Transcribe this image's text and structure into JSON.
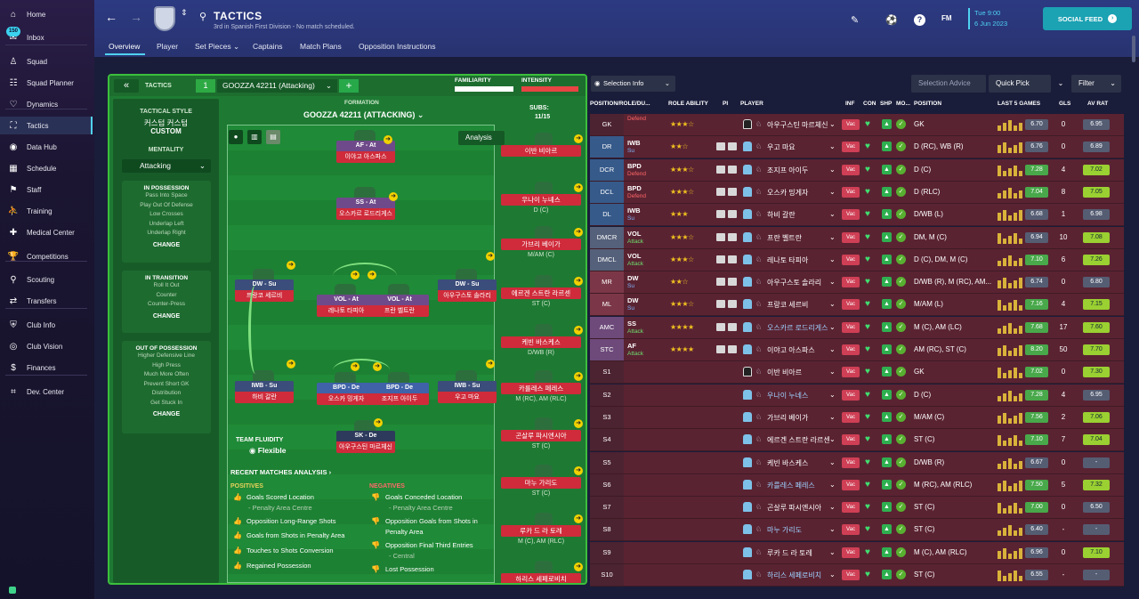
{
  "sidebar": {
    "inbox_badge": "150",
    "items": [
      {
        "label": "Home",
        "icon": "home-icon"
      },
      {
        "label": "Inbox",
        "icon": "inbox-icon"
      },
      {
        "label": "Squad",
        "icon": "squad-icon"
      },
      {
        "label": "Squad Planner",
        "icon": "squad-planner-icon"
      },
      {
        "label": "Dynamics",
        "icon": "dynamics-icon"
      },
      {
        "label": "Tactics",
        "icon": "tactics-icon"
      },
      {
        "label": "Data Hub",
        "icon": "data-hub-icon"
      },
      {
        "label": "Schedule",
        "icon": "schedule-icon"
      },
      {
        "label": "Staff",
        "icon": "staff-icon"
      },
      {
        "label": "Training",
        "icon": "training-icon"
      },
      {
        "label": "Medical Center",
        "icon": "medical-icon"
      },
      {
        "label": "Competitions",
        "icon": "trophy-icon"
      },
      {
        "label": "Scouting",
        "icon": "scouting-icon"
      },
      {
        "label": "Transfers",
        "icon": "transfers-icon"
      },
      {
        "label": "Club Info",
        "icon": "club-info-icon"
      },
      {
        "label": "Club Vision",
        "icon": "club-vision-icon"
      },
      {
        "label": "Finances",
        "icon": "finances-icon"
      },
      {
        "label": "Dev. Center",
        "icon": "dev-center-icon"
      }
    ]
  },
  "header": {
    "title": "TACTICS",
    "subtitle": "3rd in Spanish First Division - No match scheduled.",
    "tabs": [
      "Overview",
      "Player",
      "Set Pieces ⌄",
      "Captains",
      "Match Plans",
      "Opposition Instructions"
    ],
    "fm_label": "FM",
    "time": "Tue 9:00",
    "date": "6 Jun 2023",
    "social_feed": "SOCIAL FEED"
  },
  "tactics_bar": {
    "label": "TACTICS",
    "slot": "1",
    "tactic_name": "GOOZZA 42211 (Attacking)",
    "familiarity": "FAMILIARITY",
    "intensity": "INTENSITY"
  },
  "style": {
    "style_label": "TACTICAL STYLE",
    "style_name": "커스텀 커스텀",
    "style_type": "CUSTOM",
    "mentality_label": "MENTALITY",
    "mentality": "Attacking",
    "in_possession": {
      "title": "IN POSSESSION",
      "items": [
        "Pass Into Space",
        "Play Out Of Defense",
        "Low Crosses",
        "Underlap Left",
        "Underlap Right"
      ],
      "change": "CHANGE"
    },
    "in_transition": {
      "title": "IN TRANSITION",
      "items": [
        "Roll It Out",
        "Counter",
        "Counter-Press"
      ],
      "change": "CHANGE"
    },
    "out_possession": {
      "title": "OUT OF POSSESSION",
      "items": [
        "Higher Defensive Line",
        "High Press",
        "Much More Often",
        "Prevent Short GK",
        "Distribution",
        "Get Stuck In"
      ],
      "change": "CHANGE"
    }
  },
  "formation": {
    "label": "FORMATION",
    "name": "GOOZZA 42211 (ATTACKING)",
    "subs_label": "SUBS:",
    "subs_count": "11/15",
    "analysis": "Analysis",
    "fluidity_label": "TEAM FLUIDITY",
    "fluidity": "Flexible"
  },
  "pitch_players": [
    {
      "role": "AF - At",
      "name": "이야고 아스파스"
    },
    {
      "role": "SS - At",
      "name": "오스카르 로드리게스"
    },
    {
      "role": "DW - Su",
      "name": "프랑코 세르비"
    },
    {
      "role": "VOL - At",
      "name": "레나토 타피아"
    },
    {
      "role": "VOL - At",
      "name": "프란 벨트란"
    },
    {
      "role": "DW - Su",
      "name": "아우구스토 솔라리"
    },
    {
      "role": "IWB - Su",
      "name": "하비 갈란"
    },
    {
      "role": "BPD - De",
      "name": "오스카 밍게자"
    },
    {
      "role": "BPD - De",
      "name": "조지프 아이두"
    },
    {
      "role": "IWB - Su",
      "name": "우고 마요"
    },
    {
      "role": "SK - De",
      "name": "아우구스틴 마르체신"
    }
  ],
  "subs": [
    {
      "name": "이반 비아르",
      "pos": ""
    },
    {
      "name": "우나이 누녜스",
      "pos": "D (C)"
    },
    {
      "name": "가브리 베이가",
      "pos": "M/AM (C)"
    },
    {
      "name": "에르겐 스트란 라르센",
      "pos": "ST (C)"
    },
    {
      "name": "케빈 바스케스",
      "pos": "D/WB (R)"
    },
    {
      "name": "카를레스 페레스",
      "pos": "M (RC), AM (RLC)"
    },
    {
      "name": "곤살루 파시엔시아",
      "pos": "ST (C)"
    },
    {
      "name": "마누 가리도",
      "pos": "ST (C)"
    },
    {
      "name": "루카 드 라 토레",
      "pos": "M (C), AM (RLC)"
    },
    {
      "name": "하리스 세페로비치",
      "pos": ""
    }
  ],
  "analysis": {
    "title": "RECENT MATCHES ANALYSIS ›",
    "positives_label": "POSITIVES",
    "negatives_label": "NEGATIVES",
    "positives": [
      "Goals Scored Location",
      "- Penalty Area Centre",
      "Opposition Long-Range Shots",
      "Goals from Shots in Penalty Area",
      "Touches to Shots Conversion",
      "Regained Possession"
    ],
    "negatives": [
      "Goals Conceded Location",
      "- Penalty Area Centre",
      "Opposition Goals from Shots in",
      "Penalty Area",
      "Opposition Final Third Entries",
      "- Central",
      "Lost Possession"
    ]
  },
  "right_panel": {
    "selection_info": "Selection Info",
    "selection_advice": "Selection Advice",
    "quick_pick": "Quick Pick",
    "filter": "Filter",
    "columns": [
      "POSITION/ROLE/DU...",
      "ROLE ABILITY",
      "PI",
      "PLAYER",
      "INF",
      "CON",
      "SHP",
      "MO...",
      "POSITION",
      "LAST 5 GAMES",
      "GLS",
      "AV RAT"
    ],
    "rows": [
      {
        "pos": "GK",
        "role": "",
        "duty": "Defend",
        "stars": "★★★☆",
        "player": "아우구스틴 마르체신",
        "ppos": "GK",
        "rating": "6.70",
        "gls": "0",
        "av": "6.95",
        "cls": "sub3",
        "gk": true
      },
      {
        "pos": "DR",
        "role": "IWB",
        "duty": "Su",
        "stars": "★★☆",
        "player": "우고 마요",
        "ppos": "D (RC), WB (R)",
        "rating": "6.76",
        "gls": "0",
        "av": "6.89",
        "cls": "def"
      },
      {
        "pos": "DCR",
        "role": "BPD",
        "duty": "Defend",
        "stars": "★★★☆",
        "player": "조지프 아이두",
        "ppos": "D (C)",
        "rating": "7.28",
        "gls": "4",
        "av": "7.02",
        "cls": "def"
      },
      {
        "pos": "DCL",
        "role": "BPD",
        "duty": "Defend",
        "stars": "★★★☆",
        "player": "오스카 밍게자",
        "ppos": "D (RLC)",
        "rating": "7.04",
        "gls": "8",
        "av": "7.05",
        "cls": "def"
      },
      {
        "pos": "DL",
        "role": "IWB",
        "duty": "Su",
        "stars": "★★★",
        "player": "하비 갈란",
        "ppos": "D/WB (L)",
        "rating": "6.68",
        "gls": "1",
        "av": "6.98",
        "cls": "def"
      },
      {
        "pos": "DMCR",
        "role": "VOL",
        "duty": "Attack",
        "stars": "★★★☆",
        "player": "프란 벨트란",
        "ppos": "DM, M (C)",
        "rating": "6.94",
        "gls": "10",
        "av": "7.08",
        "cls": "dm"
      },
      {
        "pos": "DMCL",
        "role": "VOL",
        "duty": "Attack",
        "stars": "★★★☆",
        "player": "레나토 타피아",
        "ppos": "D (C), DM, M (C)",
        "rating": "7.10",
        "gls": "6",
        "av": "7.26",
        "cls": "dm"
      },
      {
        "pos": "MR",
        "role": "DW",
        "duty": "Su",
        "stars": "★★☆",
        "player": "아우구스토 솔라리",
        "ppos": "D/WB (R), M (RC), AM...",
        "rating": "6.74",
        "gls": "0",
        "av": "6.80",
        "cls": ""
      },
      {
        "pos": "ML",
        "role": "DW",
        "duty": "Su",
        "stars": "★★★☆",
        "player": "프랑코 세르비",
        "ppos": "M/AM (L)",
        "rating": "7.16",
        "gls": "4",
        "av": "7.15",
        "cls": ""
      },
      {
        "pos": "AMC",
        "role": "SS",
        "duty": "Attack",
        "stars": "★★★★",
        "player": "오스카르 로드리게스",
        "ppos": "M (C), AM (LC)",
        "rating": "7.68",
        "gls": "17",
        "av": "7.60",
        "cls": "mid",
        "hl": true
      },
      {
        "pos": "STC",
        "role": "AF",
        "duty": "Attack",
        "stars": "★★★★",
        "player": "이야고 아스파스",
        "ppos": "AM (RC), ST (C)",
        "rating": "8.20",
        "gls": "50",
        "av": "7.70",
        "cls": "mid"
      },
      {
        "pos": "S1",
        "role": "",
        "duty": "",
        "stars": "",
        "player": "이반 비아르",
        "ppos": "GK",
        "rating": "7.02",
        "gls": "0",
        "av": "7.30",
        "cls": "sub3",
        "gk": true
      },
      {
        "pos": "S2",
        "role": "",
        "duty": "",
        "stars": "",
        "player": "우나이 누녜스",
        "ppos": "D (C)",
        "rating": "7.28",
        "gls": "4",
        "av": "6.95",
        "cls": "sub3",
        "hl": true
      },
      {
        "pos": "S3",
        "role": "",
        "duty": "",
        "stars": "",
        "player": "가브리 베이가",
        "ppos": "M/AM (C)",
        "rating": "7.56",
        "gls": "2",
        "av": "7.06",
        "cls": "sub3"
      },
      {
        "pos": "S4",
        "role": "",
        "duty": "",
        "stars": "",
        "player": "에르겐 스트란 라르센",
        "ppos": "ST (C)",
        "rating": "7.10",
        "gls": "7",
        "av": "7.04",
        "cls": "sub3"
      },
      {
        "pos": "S5",
        "role": "",
        "duty": "",
        "stars": "",
        "player": "케빈 바스케스",
        "ppos": "D/WB (R)",
        "rating": "6.67",
        "gls": "0",
        "av": "-",
        "cls": "sub3"
      },
      {
        "pos": "S6",
        "role": "",
        "duty": "",
        "stars": "",
        "player": "카를레스 페레스",
        "ppos": "M (RC), AM (RLC)",
        "rating": "7.50",
        "gls": "5",
        "av": "7.32",
        "cls": "sub3",
        "hl": true
      },
      {
        "pos": "S7",
        "role": "",
        "duty": "",
        "stars": "",
        "player": "곤살루 파시엔시아",
        "ppos": "ST (C)",
        "rating": "7.00",
        "gls": "0",
        "av": "6.50",
        "cls": "sub3"
      },
      {
        "pos": "S8",
        "role": "",
        "duty": "",
        "stars": "",
        "player": "마누 가리도",
        "ppos": "ST (C)",
        "rating": "6.40",
        "gls": "-",
        "av": "-",
        "cls": "sub3",
        "hl": true
      },
      {
        "pos": "S9",
        "role": "",
        "duty": "",
        "stars": "",
        "player": "루카 드 라 토레",
        "ppos": "M (C), AM (RLC)",
        "rating": "6.96",
        "gls": "0",
        "av": "7.10",
        "cls": "sub3"
      },
      {
        "pos": "S10",
        "role": "",
        "duty": "",
        "stars": "",
        "player": "하리스 세페로비치",
        "ppos": "ST (C)",
        "rating": "6.55",
        "gls": "-",
        "av": "-",
        "cls": "sub3",
        "hl": true
      }
    ]
  }
}
